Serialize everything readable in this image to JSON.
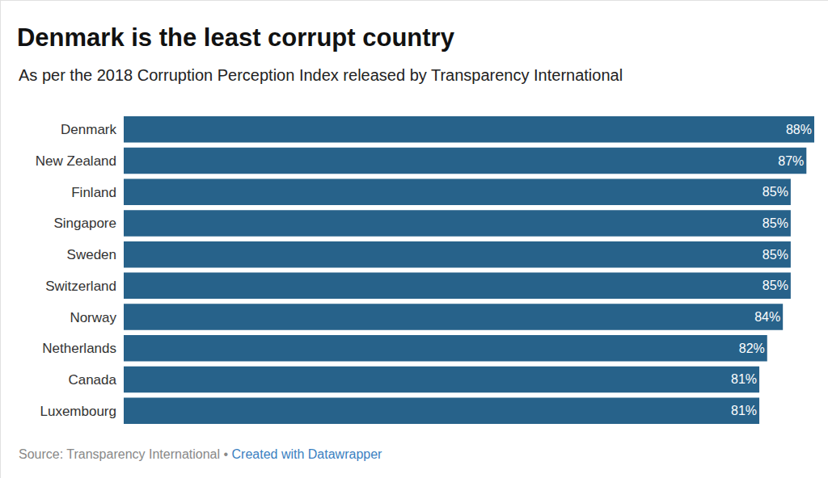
{
  "chart_data": {
    "type": "bar",
    "title": "Denmark is the least corrupt country",
    "subtitle": "As per the 2018 Corruption Perception Index released by Transparency International",
    "categories": [
      "Denmark",
      "New Zealand",
      "Finland",
      "Singapore",
      "Sweden",
      "Switzerland",
      "Norway",
      "Netherlands",
      "Canada",
      "Luxembourg"
    ],
    "values": [
      88,
      87,
      85,
      85,
      85,
      85,
      84,
      82,
      81,
      81
    ],
    "value_labels": [
      "88%",
      "87%",
      "85%",
      "85%",
      "85%",
      "85%",
      "84%",
      "82%",
      "81%",
      "81%"
    ],
    "color": "#27628a",
    "orientation": "horizontal",
    "data_labels": true,
    "tick_labels": "y",
    "grid": false,
    "xlim": [
      0,
      88
    ],
    "annotations": [
      "Source: Transparency International •",
      "Created with Datawrapper"
    ]
  }
}
